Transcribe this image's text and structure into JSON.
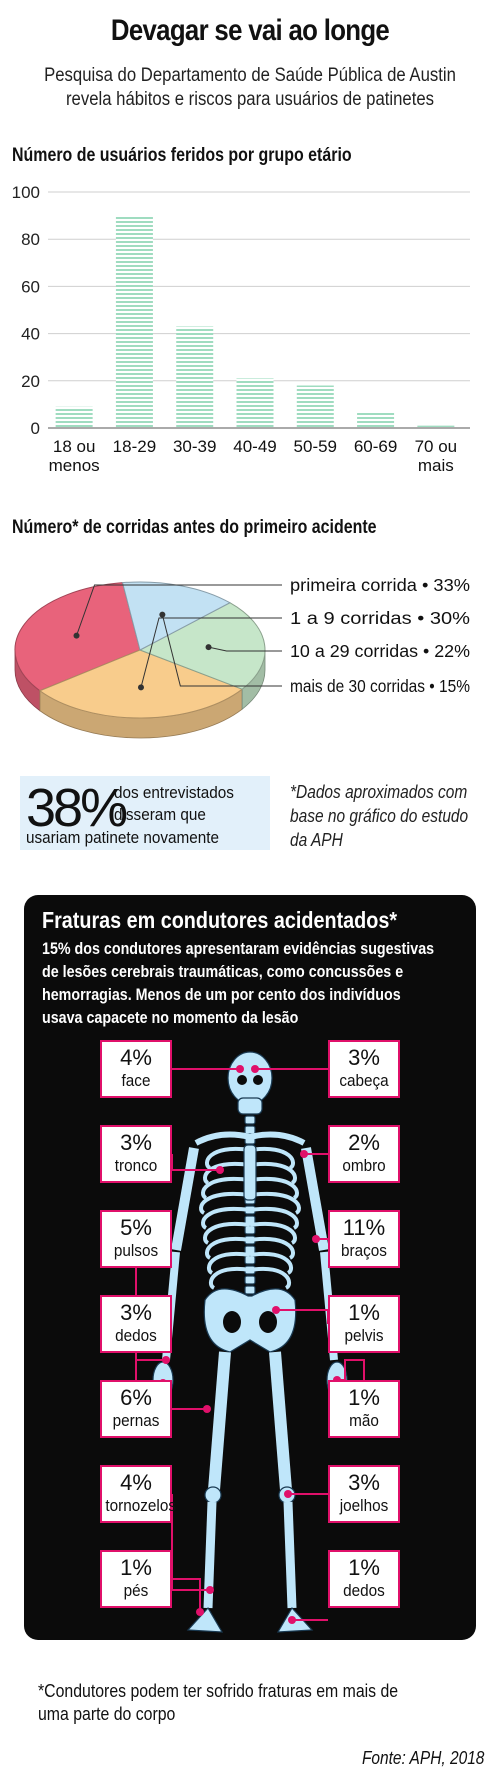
{
  "header": {
    "title": "Devagar se vai ao longe",
    "subtitle_line1": "Pesquisa do Departamento de Saúde Pública de Austin",
    "subtitle_line2": "revela hábitos e riscos para usuários de patinetes"
  },
  "colors": {
    "bar_fill": "#9fdcc0",
    "accent": "#e0106a",
    "stat_box": "#e2f0fa",
    "panel": "#0b0b0b",
    "skeleton": "#bfe6fa"
  },
  "chart_data": [
    {
      "type": "bar",
      "title": "Número de usuários feridos por grupo etário",
      "categories": [
        [
          "18 ou",
          "menos"
        ],
        [
          "18-29"
        ],
        [
          "30-39"
        ],
        [
          "40-49"
        ],
        [
          "50-59"
        ],
        [
          "60-69"
        ],
        [
          "70 ou",
          "mais"
        ]
      ],
      "values": [
        9,
        90,
        43,
        21,
        18,
        7,
        1
      ],
      "y_ticks": [
        0,
        20,
        40,
        60,
        80,
        100
      ],
      "ylim": [
        0,
        100
      ],
      "grid": true,
      "xlabel": "",
      "ylabel": ""
    },
    {
      "type": "pie",
      "title": "Número* de corridas antes do primeiro acidente",
      "slices": [
        {
          "label": "primeira corrida • 33%",
          "value": 33,
          "color": "#e8637b"
        },
        {
          "label": "1 a 9 corridas • 30%",
          "value": 30,
          "color": "#f8cc8c"
        },
        {
          "label": "10 a 29 corridas • 22%",
          "value": 22,
          "color": "#c6e6c9"
        },
        {
          "label": "mais de 30 corridas • 15%",
          "value": 15,
          "color": "#c2e1f3"
        }
      ],
      "legend_placement": "right"
    }
  ],
  "stat": {
    "number": "38%",
    "line1": "dos entrevistados",
    "line2": "disseram que",
    "line3": "usariam patinete novamente"
  },
  "approx_note": "*Dados aproximados com base no gráfico do estudo da APH",
  "fractures": {
    "title": "Fraturas em condutores acidentados*",
    "description": "15% dos condutores apresentaram evidências sugestivas de lesões cerebrais traumáticas, como concussões e hemorragias. Menos de um por cento dos indivíduos usava capacete no momento da lesão",
    "items": [
      {
        "pct": "4%",
        "label": "face"
      },
      {
        "pct": "3%",
        "label": "cabeça"
      },
      {
        "pct": "3%",
        "label": "tronco"
      },
      {
        "pct": "2%",
        "label": "ombro"
      },
      {
        "pct": "5%",
        "label": "pulsos"
      },
      {
        "pct": "11%",
        "label": "braços"
      },
      {
        "pct": "3%",
        "label": "dedos"
      },
      {
        "pct": "1%",
        "label": "pelvis"
      },
      {
        "pct": "6%",
        "label": "pernas"
      },
      {
        "pct": "1%",
        "label": "mão"
      },
      {
        "pct": "4%",
        "label": "tornozelos"
      },
      {
        "pct": "3%",
        "label": "joelhos"
      },
      {
        "pct": "1%",
        "label": "pés"
      },
      {
        "pct": "1%",
        "label": "dedos"
      }
    ]
  },
  "footnote": "*Condutores podem ter sofrido fraturas em mais de uma parte do corpo",
  "source": "Fonte: APH, 2018"
}
